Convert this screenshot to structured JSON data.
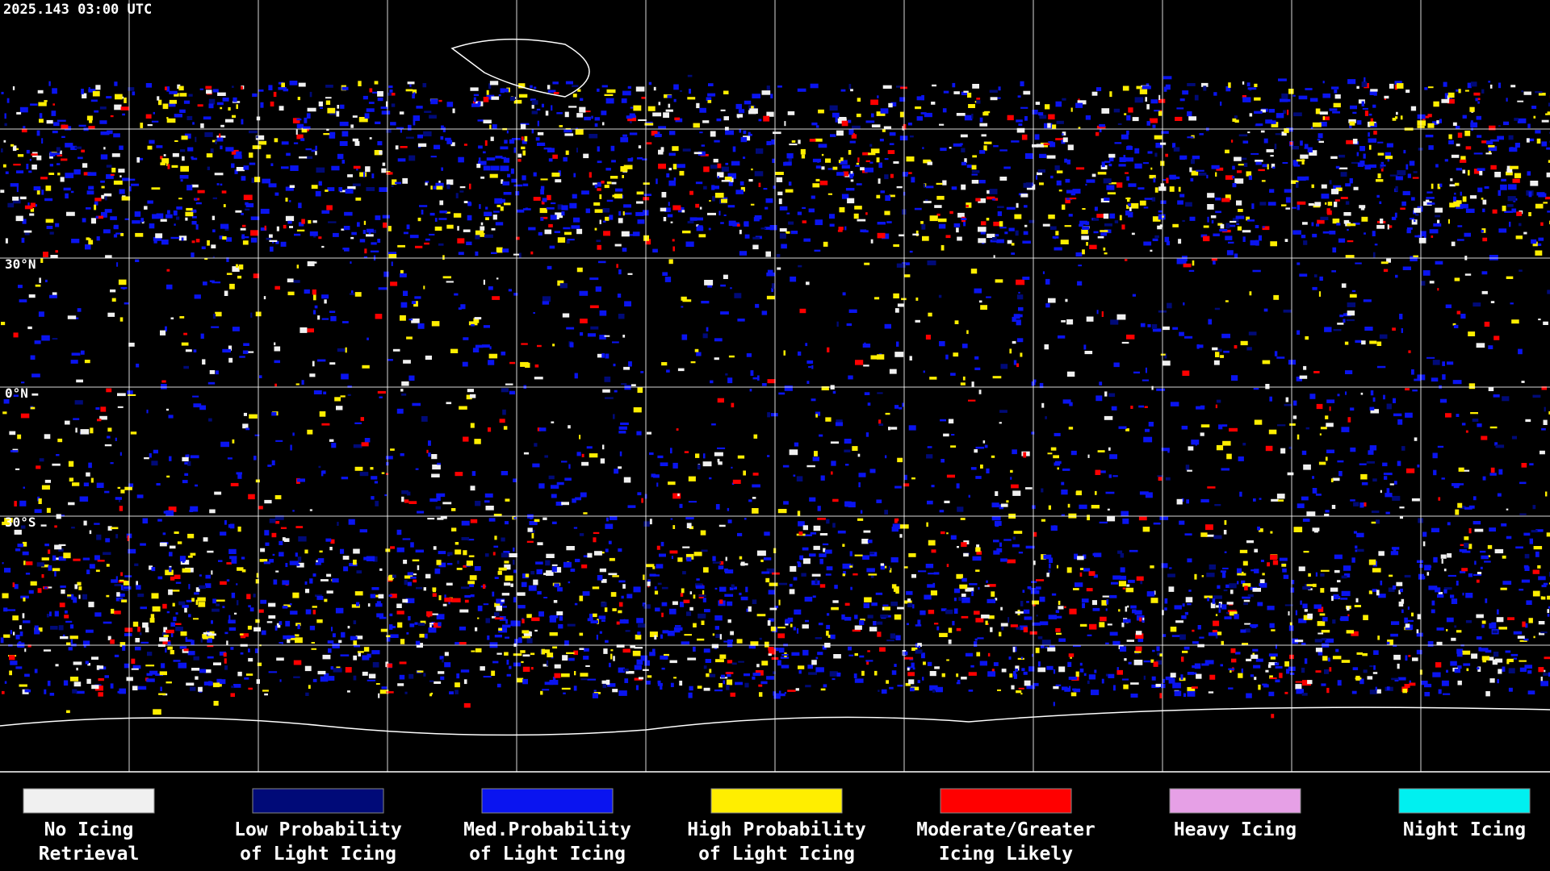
{
  "timestamp": "2025.143 03:00 UTC",
  "latitude_labels": [
    "30°N",
    "0°N",
    "30°S"
  ],
  "legend": [
    {
      "lines": [
        "No Icing",
        "Retrieval"
      ],
      "color": "#f0f0f0"
    },
    {
      "lines": [
        "Low Probability",
        "of Light Icing"
      ],
      "color": "#000a78"
    },
    {
      "lines": [
        "Med.Probability",
        "of Light Icing"
      ],
      "color": "#0a14f0"
    },
    {
      "lines": [
        "High Probability",
        "of Light Icing"
      ],
      "color": "#ffee00"
    },
    {
      "lines": [
        "Moderate/Greater",
        "Icing Likely"
      ],
      "color": "#ff0000"
    },
    {
      "lines": [
        "Heavy Icing"
      ],
      "color": "#e6a0e6"
    },
    {
      "lines": [
        "Night Icing"
      ],
      "color": "#00f0f0"
    }
  ]
}
